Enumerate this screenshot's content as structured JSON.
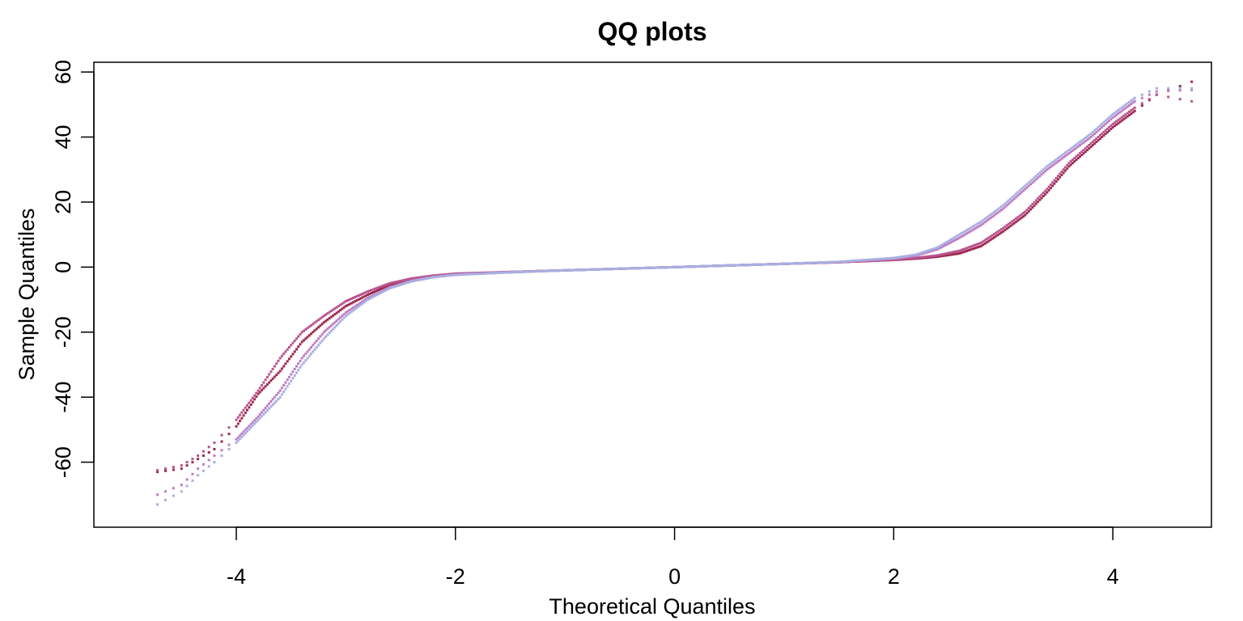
{
  "chart_data": {
    "type": "scatter",
    "title": "QQ plots",
    "xlabel": "Theoretical Quantiles",
    "ylabel": "Sample Quantiles",
    "xlim": [
      -5.3,
      4.9
    ],
    "ylim": [
      -80,
      63
    ],
    "xticks": [
      -4,
      -2,
      0,
      2,
      4
    ],
    "yticks": [
      -60,
      -40,
      -20,
      0,
      20,
      40,
      60
    ],
    "grid": false,
    "legend": "none",
    "series": [
      {
        "color": "#9e2a4f",
        "points": [
          [
            -4.72,
            -63
          ],
          [
            -4.5,
            -62
          ],
          [
            -4.35,
            -59
          ],
          [
            -4.2,
            -56
          ],
          [
            -4.0,
            -49
          ],
          [
            -3.8,
            -39
          ],
          [
            -3.6,
            -32
          ],
          [
            -3.4,
            -23
          ],
          [
            -3.2,
            -17
          ],
          [
            -3.0,
            -12
          ],
          [
            -2.8,
            -8.5
          ],
          [
            -2.6,
            -5.5
          ],
          [
            -2.4,
            -3.8
          ],
          [
            -2.2,
            -2.8
          ],
          [
            -2.0,
            -2.2
          ],
          [
            -1.5,
            -1.5
          ],
          [
            -1.0,
            -1.0
          ],
          [
            -0.5,
            -0.5
          ],
          [
            0,
            0
          ],
          [
            0.5,
            0.5
          ],
          [
            1.0,
            1.0
          ],
          [
            1.5,
            1.5
          ],
          [
            2.0,
            2.2
          ],
          [
            2.2,
            2.6
          ],
          [
            2.4,
            3.2
          ],
          [
            2.6,
            4.2
          ],
          [
            2.8,
            6.5
          ],
          [
            3.0,
            11
          ],
          [
            3.2,
            16
          ],
          [
            3.4,
            23
          ],
          [
            3.6,
            31
          ],
          [
            3.8,
            37
          ],
          [
            4.0,
            43
          ],
          [
            4.2,
            48
          ],
          [
            4.4,
            53
          ],
          [
            4.72,
            57
          ]
        ]
      },
      {
        "color": "#b8558f",
        "points": [
          [
            -4.72,
            -62.5
          ],
          [
            -4.5,
            -61
          ],
          [
            -4.35,
            -58
          ],
          [
            -4.2,
            -54
          ],
          [
            -4.0,
            -47
          ],
          [
            -3.8,
            -38
          ],
          [
            -3.6,
            -28
          ],
          [
            -3.4,
            -20
          ],
          [
            -3.2,
            -15
          ],
          [
            -3.0,
            -10.5
          ],
          [
            -2.8,
            -7.5
          ],
          [
            -2.6,
            -5
          ],
          [
            -2.4,
            -3.5
          ],
          [
            -2.2,
            -2.6
          ],
          [
            -2.0,
            -2.0
          ],
          [
            -1.5,
            -1.5
          ],
          [
            -1.0,
            -1.0
          ],
          [
            -0.5,
            -0.5
          ],
          [
            0,
            0
          ],
          [
            0.5,
            0.5
          ],
          [
            1.0,
            1.0
          ],
          [
            1.5,
            1.5
          ],
          [
            2.0,
            2.3
          ],
          [
            2.2,
            2.8
          ],
          [
            2.4,
            3.6
          ],
          [
            2.6,
            5.0
          ],
          [
            2.8,
            7.5
          ],
          [
            3.0,
            12
          ],
          [
            3.2,
            17
          ],
          [
            3.4,
            24
          ],
          [
            3.6,
            32
          ],
          [
            3.8,
            38
          ],
          [
            4.0,
            44
          ],
          [
            4.2,
            49
          ],
          [
            4.4,
            53
          ],
          [
            4.72,
            51
          ]
        ]
      },
      {
        "color": "#c07bc2",
        "points": [
          [
            -4.72,
            -70
          ],
          [
            -4.5,
            -67
          ],
          [
            -4.35,
            -62
          ],
          [
            -4.2,
            -58
          ],
          [
            -4.0,
            -53
          ],
          [
            -3.8,
            -46
          ],
          [
            -3.6,
            -38
          ],
          [
            -3.4,
            -28
          ],
          [
            -3.2,
            -20
          ],
          [
            -3.0,
            -14
          ],
          [
            -2.8,
            -9.5
          ],
          [
            -2.6,
            -6.2
          ],
          [
            -2.4,
            -4.2
          ],
          [
            -2.2,
            -3.0
          ],
          [
            -2.0,
            -2.3
          ],
          [
            -1.5,
            -1.6
          ],
          [
            -1.0,
            -1.0
          ],
          [
            -0.5,
            -0.5
          ],
          [
            0,
            0
          ],
          [
            0.5,
            0.5
          ],
          [
            1.0,
            1.0
          ],
          [
            1.5,
            1.6
          ],
          [
            2.0,
            2.6
          ],
          [
            2.2,
            3.5
          ],
          [
            2.4,
            5.5
          ],
          [
            2.6,
            9
          ],
          [
            2.8,
            13
          ],
          [
            3.0,
            18
          ],
          [
            3.2,
            24
          ],
          [
            3.4,
            30
          ],
          [
            3.6,
            35
          ],
          [
            3.8,
            40
          ],
          [
            4.0,
            46
          ],
          [
            4.2,
            51
          ],
          [
            4.4,
            54
          ],
          [
            4.72,
            54.5
          ]
        ]
      },
      {
        "color": "#a9afe0",
        "points": [
          [
            -4.72,
            -73
          ],
          [
            -4.5,
            -69
          ],
          [
            -4.35,
            -64
          ],
          [
            -4.2,
            -60
          ],
          [
            -4.0,
            -54
          ],
          [
            -3.8,
            -47
          ],
          [
            -3.6,
            -40
          ],
          [
            -3.4,
            -30
          ],
          [
            -3.2,
            -22
          ],
          [
            -3.0,
            -15
          ],
          [
            -2.8,
            -10
          ],
          [
            -2.6,
            -6.5
          ],
          [
            -2.4,
            -4.4
          ],
          [
            -2.2,
            -3.1
          ],
          [
            -2.0,
            -2.4
          ],
          [
            -1.5,
            -1.6
          ],
          [
            -1.0,
            -1.0
          ],
          [
            -0.5,
            -0.5
          ],
          [
            0,
            0
          ],
          [
            0.5,
            0.5
          ],
          [
            1.0,
            1.0
          ],
          [
            1.5,
            1.6
          ],
          [
            2.0,
            2.8
          ],
          [
            2.2,
            3.8
          ],
          [
            2.4,
            6.0
          ],
          [
            2.6,
            10
          ],
          [
            2.8,
            14
          ],
          [
            3.0,
            19
          ],
          [
            3.2,
            25
          ],
          [
            3.4,
            31
          ],
          [
            3.6,
            36
          ],
          [
            3.8,
            41
          ],
          [
            4.0,
            47
          ],
          [
            4.2,
            52
          ],
          [
            4.4,
            55
          ],
          [
            4.72,
            55
          ]
        ]
      }
    ]
  }
}
